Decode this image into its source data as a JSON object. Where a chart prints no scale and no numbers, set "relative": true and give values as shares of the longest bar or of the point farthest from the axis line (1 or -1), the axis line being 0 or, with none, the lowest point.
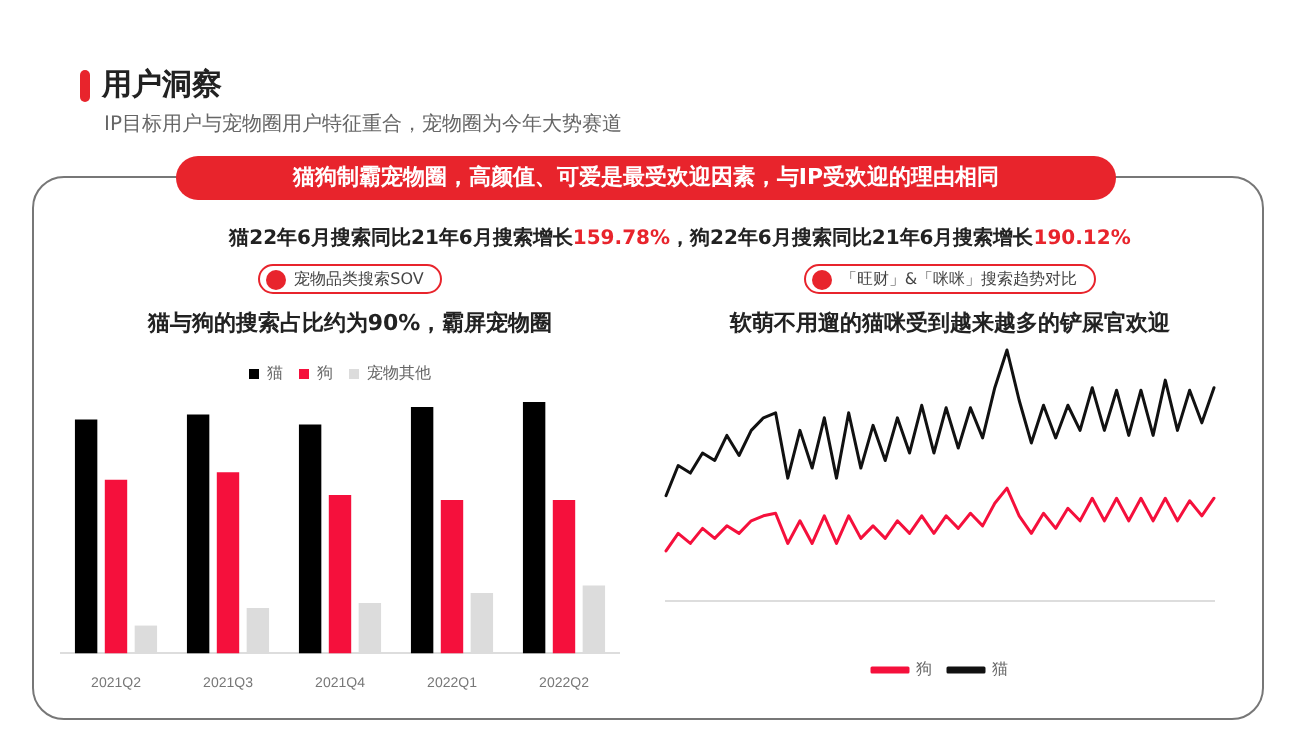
{
  "chart_data": [
    {
      "type": "other",
      "title": "用户洞察",
      "subtitle": "IP目标用户与宠物圈用户特征重合，宠物圈为今年大势赛道",
      "annotations": [
        "猫狗制霸宠物圈，高颜值、可爱是最受欢迎因素，与IP受欢迎的理由相同",
        "猫22年6月搜索同比21年6月搜索增长159.78%，狗22年6月搜索同比21年6月搜索增长190.12%"
      ]
    },
    {
      "type": "bar",
      "title": "猫与狗的搜索占比约为90%，霸屏宠物圈",
      "subtitle": "宠物品类搜索SOV",
      "relative": true,
      "legend": "top",
      "categories": [
        "2021Q2",
        "2021Q3",
        "2021Q4",
        "2022Q1",
        "2022Q2"
      ],
      "series": [
        {
          "name": "猫",
          "color": "#000000",
          "values": [
            0.93,
            0.95,
            0.91,
            0.98,
            1
          ]
        },
        {
          "name": "狗",
          "color": "#f5103c",
          "values": [
            0.69,
            0.72,
            0.63,
            0.61,
            0.61
          ]
        },
        {
          "name": "宠物其他",
          "color": "#dcdcdc",
          "values": [
            0.11,
            0.18,
            0.2,
            0.24,
            0.27
          ]
        }
      ]
    },
    {
      "type": "line",
      "title": "软萌不用遛的猫咪受到越来越多的铲屎官欢迎",
      "subtitle": "「旺财」&「咪咪」搜索趋势对比",
      "relative": true,
      "legend": "bottom",
      "marker": "none",
      "categories": [
        null,
        null,
        null,
        null,
        null,
        null,
        null,
        null,
        null,
        null,
        null,
        null,
        null,
        null,
        null,
        null,
        null,
        null,
        null,
        null,
        null,
        null,
        null,
        null,
        null,
        null,
        null,
        null,
        null,
        null,
        null,
        null,
        null,
        null,
        null,
        null,
        null,
        null,
        null,
        null,
        null,
        null,
        null,
        null,
        null,
        null
      ],
      "series": [
        {
          "name": "狗",
          "color": "#f5103c",
          "values": [
            0.2,
            0.27,
            0.23,
            0.29,
            0.25,
            0.3,
            0.27,
            0.32,
            0.34,
            0.35,
            0.23,
            0.32,
            0.23,
            0.34,
            0.23,
            0.34,
            0.25,
            0.3,
            0.25,
            0.32,
            0.27,
            0.34,
            0.27,
            0.34,
            0.29,
            0.35,
            0.3,
            0.39,
            0.45,
            0.34,
            0.27,
            0.35,
            0.29,
            0.37,
            0.32,
            0.41,
            0.32,
            0.41,
            0.32,
            0.41,
            0.32,
            0.41,
            0.32,
            0.4,
            0.34,
            0.41
          ]
        },
        {
          "name": "猫",
          "color": "#111111",
          "values": [
            0.42,
            0.54,
            0.51,
            0.59,
            0.56,
            0.66,
            0.58,
            0.68,
            0.73,
            0.75,
            0.49,
            0.68,
            0.53,
            0.73,
            0.49,
            0.75,
            0.53,
            0.7,
            0.56,
            0.73,
            0.59,
            0.78,
            0.59,
            0.77,
            0.61,
            0.77,
            0.65,
            0.85,
            1,
            0.8,
            0.63,
            0.78,
            0.65,
            0.78,
            0.68,
            0.85,
            0.68,
            0.84,
            0.66,
            0.84,
            0.66,
            0.88,
            0.68,
            0.84,
            0.71,
            0.85
          ]
        }
      ]
    }
  ]
}
